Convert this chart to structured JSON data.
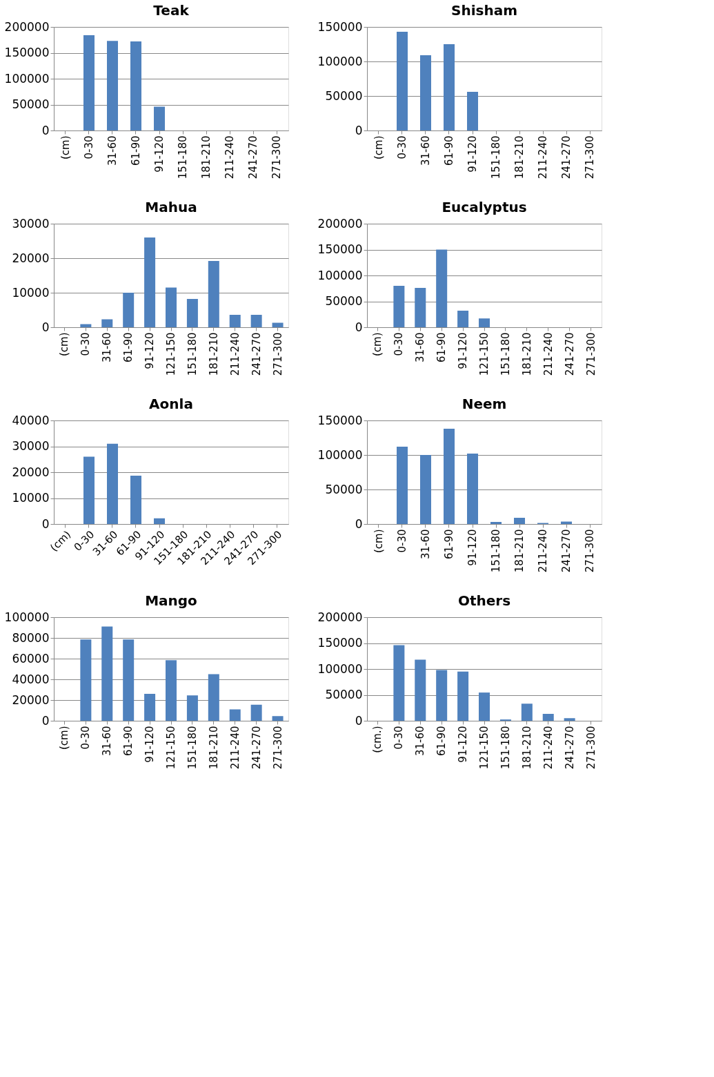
{
  "chart_data": [
    {
      "type": "bar",
      "title": "Teak",
      "categories": [
        "(cm)",
        "0-30",
        "31-60",
        "61-90",
        "91-120",
        "151-180",
        "181-210",
        "211-240",
        "241-270",
        "271-300"
      ],
      "values": [
        null,
        184000,
        173000,
        172000,
        46000,
        0,
        0,
        0,
        0,
        0
      ],
      "color": "#4f81bd",
      "ylim": [
        0,
        200000
      ],
      "yticks": [
        0,
        50000,
        100000,
        150000,
        200000
      ],
      "grid": "y"
    },
    {
      "type": "bar",
      "title": "Shisham",
      "categories": [
        "(cm)",
        "0-30",
        "31-60",
        "61-90",
        "91-120",
        "151-180",
        "181-210",
        "211-240",
        "241-270",
        "271-300"
      ],
      "values": [
        null,
        143000,
        109000,
        125000,
        56000,
        0,
        null,
        0,
        null,
        0
      ],
      "color": "#4f81bd",
      "ylim": [
        0,
        150000
      ],
      "yticks": [
        0,
        50000,
        100000,
        150000
      ],
      "grid": "y"
    },
    {
      "type": "bar",
      "title": "Mahua",
      "categories": [
        "(cm)",
        "0-30",
        "31-60",
        "61-90",
        "91-120",
        "121-150",
        "151-180",
        "181-210",
        "211-240",
        "241-270",
        "271-300"
      ],
      "values": [
        null,
        900,
        2300,
        10000,
        26000,
        11500,
        8200,
        19200,
        3600,
        3600,
        1300
      ],
      "color": "#4f81bd",
      "ylim": [
        0,
        30000
      ],
      "yticks": [
        0,
        10000,
        20000,
        30000
      ],
      "grid": "y"
    },
    {
      "type": "bar",
      "title": "Eucalyptus",
      "categories": [
        "(cm)",
        "0-30",
        "31-60",
        "61-90",
        "91-120",
        "121-150",
        "151-180",
        "181-210",
        "211-240",
        "241-270",
        "271-300"
      ],
      "values": [
        null,
        80000,
        76000,
        150000,
        32000,
        17000,
        null,
        null,
        0,
        0,
        0
      ],
      "color": "#4f81bd",
      "ylim": [
        0,
        200000
      ],
      "yticks": [
        0,
        50000,
        100000,
        150000,
        200000
      ],
      "grid": "y"
    },
    {
      "type": "bar",
      "title": "Aonla",
      "categories": [
        "(cm)",
        "0-30",
        "31-60",
        "61-90",
        "91-120",
        "151-180",
        "181-210",
        "211-240",
        "241-270",
        "271-300"
      ],
      "values": [
        null,
        26000,
        31000,
        18700,
        2200,
        0,
        0,
        0,
        0,
        0
      ],
      "color": "#4f81bd",
      "ylim": [
        0,
        40000
      ],
      "yticks": [
        0,
        10000,
        20000,
        30000,
        40000
      ],
      "grid": "y"
    },
    {
      "type": "bar",
      "title": "Neem",
      "categories": [
        "(cm)",
        "0-30",
        "31-60",
        "61-90",
        "91-120",
        "151-180",
        "181-210",
        "211-240",
        "241-270",
        "271-300"
      ],
      "values": [
        null,
        112000,
        100000,
        138000,
        102000,
        3000,
        9000,
        1500,
        3500,
        0
      ],
      "color": "#4f81bd",
      "ylim": [
        0,
        150000
      ],
      "yticks": [
        0,
        50000,
        100000,
        150000
      ],
      "grid": "y"
    },
    {
      "type": "bar",
      "title": "Mango",
      "categories": [
        "(cm)",
        "0-30",
        "31-60",
        "61-90",
        "91-120",
        "121-150",
        "151-180",
        "181-210",
        "211-240",
        "241-270",
        "271-300"
      ],
      "values": [
        null,
        78500,
        91000,
        78500,
        26000,
        58500,
        24500,
        45000,
        11000,
        15500,
        4500
      ],
      "color": "#4f81bd",
      "ylim": [
        0,
        100000
      ],
      "yticks": [
        0,
        20000,
        40000,
        60000,
        80000,
        100000
      ],
      "grid": "y"
    },
    {
      "type": "bar",
      "title": "Others",
      "categories": [
        "(cm.)",
        "0-30",
        "31-60",
        "61-90",
        "91-120",
        "121-150",
        "151-180",
        "181-210",
        "211-240",
        "241-270",
        "271-300"
      ],
      "values": [
        null,
        146000,
        118000,
        98000,
        95000,
        54500,
        2500,
        33000,
        13500,
        5000,
        0
      ],
      "color": "#4f81bd",
      "ylim": [
        0,
        200000
      ],
      "yticks": [
        0,
        50000,
        100000,
        150000,
        200000
      ],
      "grid": "y"
    }
  ]
}
